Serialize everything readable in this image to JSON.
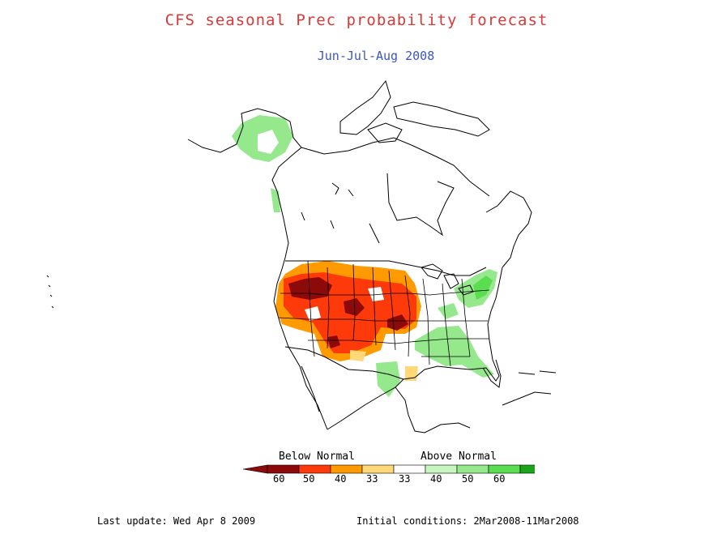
{
  "title": "CFS seasonal Prec probability forecast",
  "subtitle": "Jun-Jul-Aug 2008",
  "legend": {
    "below_label": "Below Normal",
    "above_label": "Above Normal",
    "below_ticks": [
      "60",
      "50",
      "40",
      "33"
    ],
    "above_ticks": [
      "33",
      "40",
      "50",
      "60"
    ],
    "colors": {
      "below_60": "#8c0a0a",
      "below_50": "#ff3a0a",
      "below_40": "#ff9a00",
      "below_33": "#ffd978",
      "normal": "#ffffff",
      "above_33": "#c8f5c0",
      "above_40": "#96e88c",
      "above_50": "#5ade50",
      "above_60": "#1aa51a"
    }
  },
  "footer": {
    "last_update": "Last update: Wed Apr 8 2009",
    "initial_conditions": "Initial conditions: 2Mar2008-11Mar2008"
  },
  "map": {
    "region": "North America",
    "highlight_regions": [
      {
        "category": "below",
        "probability": "60",
        "area": "Montana / Wyoming"
      },
      {
        "category": "below",
        "probability": "60",
        "area": "Nebraska"
      },
      {
        "category": "below",
        "probability": "60",
        "area": "Missouri / Iowa"
      },
      {
        "category": "below",
        "probability": "60",
        "area": "Oklahoma / Texas Panhandle"
      },
      {
        "category": "below",
        "probability": "50",
        "area": "Northern / Central Plains"
      },
      {
        "category": "below",
        "probability": "40",
        "area": "Dakotas / Minnesota"
      },
      {
        "category": "below",
        "probability": "33",
        "area": "East Texas"
      },
      {
        "category": "above",
        "probability": "40",
        "area": "Alaska"
      },
      {
        "category": "above",
        "probability": "40",
        "area": "Southeast US"
      },
      {
        "category": "above",
        "probability": "50",
        "area": "Mid-Atlantic"
      },
      {
        "category": "above",
        "probability": "40",
        "area": "Southwest Texas"
      }
    ]
  }
}
